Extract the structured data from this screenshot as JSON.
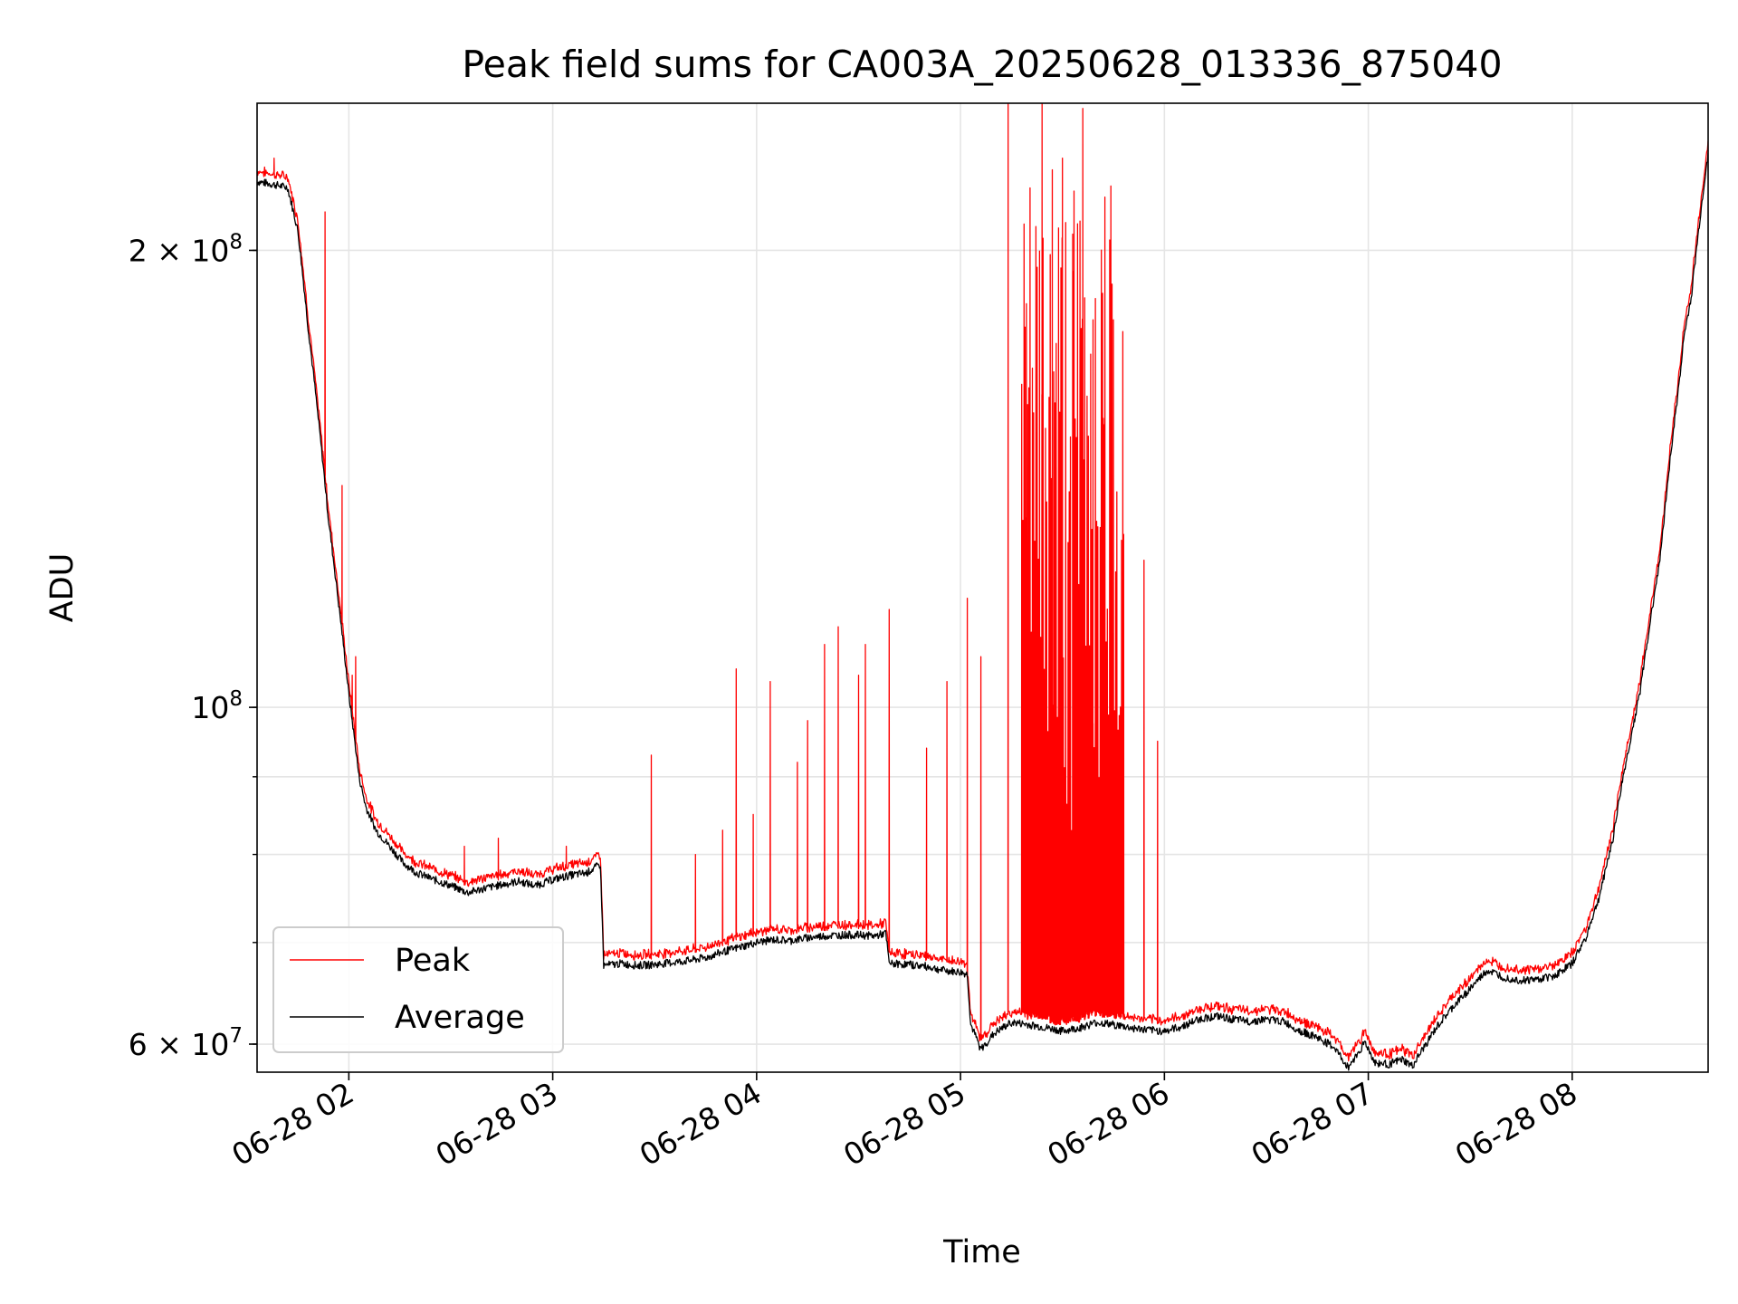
{
  "chart_data": {
    "type": "line",
    "title": "Peak field sums for CA003A_20250628_013336_875040",
    "xlabel": "Time",
    "ylabel": "ADU",
    "y_scale": "log",
    "grid": true,
    "legend_position": "lower-left",
    "xlim": [
      "2025-06-28 01:33",
      "2025-06-28 08:40"
    ],
    "ylim": [
      57500000,
      250000000
    ],
    "x_ticks": [
      {
        "value": "2025-06-28 02:00",
        "label": "06-28 02"
      },
      {
        "value": "2025-06-28 03:00",
        "label": "06-28 03"
      },
      {
        "value": "2025-06-28 04:00",
        "label": "06-28 04"
      },
      {
        "value": "2025-06-28 05:00",
        "label": "06-28 05"
      },
      {
        "value": "2025-06-28 06:00",
        "label": "06-28 06"
      },
      {
        "value": "2025-06-28 07:00",
        "label": "06-28 07"
      },
      {
        "value": "2025-06-28 08:00",
        "label": "06-28 08"
      }
    ],
    "y_ticks": [
      {
        "value": 200000000,
        "label_base": "2 × 10",
        "label_exp": "8"
      },
      {
        "value": 100000000,
        "label_base": "10",
        "label_exp": "8"
      },
      {
        "value": 60000000,
        "label_base": "6 × 10",
        "label_exp": "7"
      }
    ],
    "series": [
      {
        "name": "Average",
        "color": "#000000",
        "points": [
          [
            "2025-06-28 01:33",
            222000000
          ],
          [
            "2025-06-28 01:38",
            221000000
          ],
          [
            "2025-06-28 01:42",
            220000000
          ],
          [
            "2025-06-28 01:45",
            206000000
          ],
          [
            "2025-06-28 01:48",
            178000000
          ],
          [
            "2025-06-28 01:51",
            155000000
          ],
          [
            "2025-06-28 01:54",
            133000000
          ],
          [
            "2025-06-28 01:57",
            117000000
          ],
          [
            "2025-06-28 02:00",
            102000000
          ],
          [
            "2025-06-28 02:03",
            90000000
          ],
          [
            "2025-06-28 02:05",
            86000000
          ],
          [
            "2025-06-28 02:08",
            83000000
          ],
          [
            "2025-06-28 02:12",
            81000000
          ],
          [
            "2025-06-28 02:16",
            79000000
          ],
          [
            "2025-06-28 02:20",
            77800000
          ],
          [
            "2025-06-28 02:25",
            77000000
          ],
          [
            "2025-06-28 02:30",
            76300000
          ],
          [
            "2025-06-28 02:35",
            75500000
          ],
          [
            "2025-06-28 02:40",
            76000000
          ],
          [
            "2025-06-28 02:45",
            76400000
          ],
          [
            "2025-06-28 02:50",
            76800000
          ],
          [
            "2025-06-28 02:55",
            76300000
          ],
          [
            "2025-06-28 03:00",
            77000000
          ],
          [
            "2025-06-28 03:05",
            77500000
          ],
          [
            "2025-06-28 03:10",
            77800000
          ],
          [
            "2025-06-28 03:14",
            78800000
          ],
          [
            "2025-06-28 03:15",
            67600000
          ],
          [
            "2025-06-28 03:20",
            67800000
          ],
          [
            "2025-06-28 03:25",
            67600000
          ],
          [
            "2025-06-28 03:30",
            67700000
          ],
          [
            "2025-06-28 03:35",
            67900000
          ],
          [
            "2025-06-28 03:40",
            68100000
          ],
          [
            "2025-06-28 03:45",
            68400000
          ],
          [
            "2025-06-28 03:50",
            69000000
          ],
          [
            "2025-06-28 03:55",
            69500000
          ],
          [
            "2025-06-28 04:00",
            70000000
          ],
          [
            "2025-06-28 04:05",
            70300000
          ],
          [
            "2025-06-28 04:10",
            70200000
          ],
          [
            "2025-06-28 04:15",
            70500000
          ],
          [
            "2025-06-28 04:20",
            70700000
          ],
          [
            "2025-06-28 04:25",
            70800000
          ],
          [
            "2025-06-28 04:30",
            70800000
          ],
          [
            "2025-06-28 04:35",
            70700000
          ],
          [
            "2025-06-28 04:38",
            71000000
          ],
          [
            "2025-06-28 04:39",
            67800000
          ],
          [
            "2025-06-28 04:45",
            67700000
          ],
          [
            "2025-06-28 04:50",
            67500000
          ],
          [
            "2025-06-28 04:55",
            67100000
          ],
          [
            "2025-06-28 05:00",
            66900000
          ],
          [
            "2025-06-28 05:02",
            66700000
          ],
          [
            "2025-06-28 05:03",
            61800000
          ],
          [
            "2025-06-28 05:06",
            59500000
          ],
          [
            "2025-06-28 05:10",
            61000000
          ],
          [
            "2025-06-28 05:15",
            62000000
          ],
          [
            "2025-06-28 05:20",
            61800000
          ],
          [
            "2025-06-28 05:25",
            61500000
          ],
          [
            "2025-06-28 05:30",
            61200000
          ],
          [
            "2025-06-28 05:35",
            61500000
          ],
          [
            "2025-06-28 05:40",
            62000000
          ],
          [
            "2025-06-28 05:45",
            61800000
          ],
          [
            "2025-06-28 05:50",
            61500000
          ],
          [
            "2025-06-28 05:55",
            61300000
          ],
          [
            "2025-06-28 06:00",
            61200000
          ],
          [
            "2025-06-28 06:05",
            61600000
          ],
          [
            "2025-06-28 06:10",
            62300000
          ],
          [
            "2025-06-28 06:15",
            62600000
          ],
          [
            "2025-06-28 06:20",
            62300000
          ],
          [
            "2025-06-28 06:25",
            62100000
          ],
          [
            "2025-06-28 06:30",
            62300000
          ],
          [
            "2025-06-28 06:35",
            62100000
          ],
          [
            "2025-06-28 06:40",
            61200000
          ],
          [
            "2025-06-28 06:45",
            60600000
          ],
          [
            "2025-06-28 06:50",
            59700000
          ],
          [
            "2025-06-28 06:54",
            57900000
          ],
          [
            "2025-06-28 06:57",
            59200000
          ],
          [
            "2025-06-28 06:59",
            60200000
          ],
          [
            "2025-06-28 07:02",
            58300000
          ],
          [
            "2025-06-28 07:06",
            58200000
          ],
          [
            "2025-06-28 07:10",
            58600000
          ],
          [
            "2025-06-28 07:13",
            58000000
          ],
          [
            "2025-06-28 07:16",
            59500000
          ],
          [
            "2025-06-28 07:20",
            61500000
          ],
          [
            "2025-06-28 07:25",
            63500000
          ],
          [
            "2025-06-28 07:30",
            65300000
          ],
          [
            "2025-06-28 07:35",
            67100000
          ],
          [
            "2025-06-28 07:40",
            66400000
          ],
          [
            "2025-06-28 07:45",
            66100000
          ],
          [
            "2025-06-28 07:50",
            66200000
          ],
          [
            "2025-06-28 07:55",
            66600000
          ],
          [
            "2025-06-28 08:00",
            67800000
          ],
          [
            "2025-06-28 08:04",
            70500000
          ],
          [
            "2025-06-28 08:08",
            75000000
          ],
          [
            "2025-06-28 08:12",
            82000000
          ],
          [
            "2025-06-28 08:15",
            90000000
          ],
          [
            "2025-06-28 08:17",
            94800000
          ],
          [
            "2025-06-28 08:20",
            102500000
          ],
          [
            "2025-06-28 08:23",
            114000000
          ],
          [
            "2025-06-28 08:26",
            126000000
          ],
          [
            "2025-06-28 08:29",
            147000000
          ],
          [
            "2025-06-28 08:31",
            160000000
          ],
          [
            "2025-06-28 08:33",
            176000000
          ],
          [
            "2025-06-28 08:35",
            186000000
          ],
          [
            "2025-06-28 08:37",
            204000000
          ],
          [
            "2025-06-28 08:40",
            232000000
          ]
        ]
      },
      {
        "name": "Peak",
        "color": "#ff0000",
        "offset_fraction": 0.013,
        "spikes": [
          [
            "2025-06-28 01:38",
            230000000
          ],
          [
            "2025-06-28 01:53",
            212000000
          ],
          [
            "2025-06-28 01:58",
            140000000
          ],
          [
            "2025-06-28 02:01",
            105000000
          ],
          [
            "2025-06-28 02:02",
            108000000
          ],
          [
            "2025-06-28 02:07",
            86000000
          ],
          [
            "2025-06-28 02:34",
            81000000
          ],
          [
            "2025-06-28 02:44",
            82000000
          ],
          [
            "2025-06-28 03:04",
            81000000
          ],
          [
            "2025-06-28 03:29",
            93000000
          ],
          [
            "2025-06-28 03:42",
            80000000
          ],
          [
            "2025-06-28 03:50",
            83000000
          ],
          [
            "2025-06-28 03:54",
            106000000
          ],
          [
            "2025-06-28 03:59",
            85000000
          ],
          [
            "2025-06-28 04:04",
            104000000
          ],
          [
            "2025-06-28 04:12",
            92000000
          ],
          [
            "2025-06-28 04:15",
            98000000
          ],
          [
            "2025-06-28 04:20",
            110000000
          ],
          [
            "2025-06-28 04:24",
            113000000
          ],
          [
            "2025-06-28 04:30",
            105000000
          ],
          [
            "2025-06-28 04:32",
            110000000
          ],
          [
            "2025-06-28 04:39",
            116000000
          ],
          [
            "2025-06-28 04:50",
            94000000
          ],
          [
            "2025-06-28 04:56",
            104000000
          ],
          [
            "2025-06-28 05:02",
            118000000
          ],
          [
            "2025-06-28 05:06",
            108000000
          ],
          [
            "2025-06-28 05:14",
            250000000
          ],
          [
            "2025-06-28 05:19",
            178000000
          ],
          [
            "2025-06-28 05:24",
            250000000
          ],
          [
            "2025-06-28 05:27",
            226000000
          ],
          [
            "2025-06-28 05:30",
            230000000
          ],
          [
            "2025-06-28 05:33",
            205000000
          ],
          [
            "2025-06-28 05:36",
            248000000
          ],
          [
            "2025-06-28 05:39",
            180000000
          ],
          [
            "2025-06-28 05:42",
            155000000
          ],
          [
            "2025-06-28 05:45",
            180000000
          ],
          [
            "2025-06-28 05:48",
            130000000
          ],
          [
            "2025-06-28 05:54",
            125000000
          ],
          [
            "2025-06-28 05:58",
            95000000
          ]
        ]
      }
    ]
  }
}
